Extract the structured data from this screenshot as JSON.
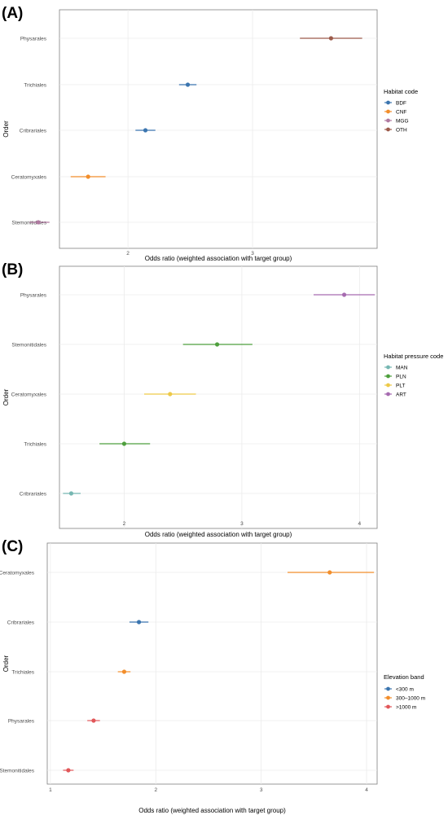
{
  "colors": {
    "BDF": "#3b75af",
    "CNF": "#f28e2b",
    "MGG": "#b07aa1",
    "OTH": "#9c5b4b",
    "MAN": "#76b7b2",
    "PLN": "#4e9f3d",
    "PLT": "#edc948",
    "ART": "#a66bb0",
    "lt300": "#3b75af",
    "mid": "#f28e2b",
    "gt1000": "#e15759",
    "grid": "#ebebeb",
    "panel_border": "#7f7f7f"
  },
  "chart_data": [
    {
      "type": "forest",
      "panel_label": "(A)",
      "xlabel": "Odds ratio (weighted association with target group)",
      "ylabel": "Order",
      "xlim": [
        1.45,
        4.0
      ],
      "xticks": [
        2,
        3
      ],
      "grid": true,
      "legend_title": "Habitat code",
      "legend": [
        {
          "label": "BDF",
          "color_key": "BDF"
        },
        {
          "label": "CNF",
          "color_key": "CNF"
        },
        {
          "label": "MGG",
          "color_key": "MGG"
        },
        {
          "label": "OTH",
          "color_key": "OTH"
        }
      ],
      "legend_position": "right",
      "points": [
        {
          "label": "Physarales",
          "estimate": 3.63,
          "low": 3.38,
          "high": 3.88,
          "group": "OTH"
        },
        {
          "label": "Trichiales",
          "estimate": 2.48,
          "low": 2.41,
          "high": 2.55,
          "group": "BDF"
        },
        {
          "label": "Cribrariales",
          "estimate": 2.14,
          "low": 2.06,
          "high": 2.22,
          "group": "BDF"
        },
        {
          "label": "Ceratomyxales",
          "estimate": 1.68,
          "low": 1.54,
          "high": 1.82,
          "group": "CNF"
        },
        {
          "label": "Stemonitidales",
          "estimate": 1.28,
          "low": 1.21,
          "high": 1.37,
          "group": "MGG"
        }
      ]
    },
    {
      "type": "forest",
      "panel_label": "(B)",
      "xlabel": "Odds ratio (weighted association with target group)",
      "ylabel": "Order",
      "xlim": [
        1.45,
        4.15
      ],
      "xticks": [
        2,
        3,
        4
      ],
      "grid": true,
      "legend_title": "Habitat pressure code",
      "legend": [
        {
          "label": "MAN",
          "color_key": "MAN"
        },
        {
          "label": "PLN",
          "color_key": "PLN"
        },
        {
          "label": "PLT",
          "color_key": "PLT"
        },
        {
          "label": "ART",
          "color_key": "ART"
        }
      ],
      "legend_position": "right",
      "points": [
        {
          "label": "Physarales",
          "estimate": 3.87,
          "low": 3.61,
          "high": 4.13,
          "group": "ART"
        },
        {
          "label": "Stemonitidales",
          "estimate": 2.79,
          "low": 2.5,
          "high": 3.09,
          "group": "PLN"
        },
        {
          "label": "Ceratomyxales",
          "estimate": 2.39,
          "low": 2.17,
          "high": 2.61,
          "group": "PLT"
        },
        {
          "label": "Trichiales",
          "estimate": 2.0,
          "low": 1.79,
          "high": 2.22,
          "group": "PLN"
        },
        {
          "label": "Cribrariales",
          "estimate": 1.55,
          "low": 1.48,
          "high": 1.63,
          "group": "MAN"
        }
      ]
    },
    {
      "type": "forest",
      "panel_label": "(C)",
      "xlabel": "Odds ratio (weighted association with target group)",
      "ylabel": "Order",
      "xlim": [
        0.97,
        4.1
      ],
      "xticks": [
        1,
        2,
        3,
        4
      ],
      "grid": true,
      "legend_title": "Elevation band",
      "legend": [
        {
          "label": "<300 m",
          "color_key": "lt300"
        },
        {
          "label": "300–1000 m",
          "color_key": "mid"
        },
        {
          "label": ">1000 m",
          "color_key": "gt1000"
        }
      ],
      "legend_position": "right",
      "points": [
        {
          "label": "Ceratomyxales",
          "estimate": 3.65,
          "low": 3.25,
          "high": 4.07,
          "group": "mid"
        },
        {
          "label": "Cribrariales",
          "estimate": 1.84,
          "low": 1.75,
          "high": 1.93,
          "group": "lt300"
        },
        {
          "label": "Trichiales",
          "estimate": 1.7,
          "low": 1.64,
          "high": 1.76,
          "group": "mid"
        },
        {
          "label": "Physarales",
          "estimate": 1.41,
          "low": 1.35,
          "high": 1.47,
          "group": "gt1000"
        },
        {
          "label": "Stemonitidales",
          "estimate": 1.17,
          "low": 1.12,
          "high": 1.22,
          "group": "gt1000"
        }
      ]
    }
  ]
}
